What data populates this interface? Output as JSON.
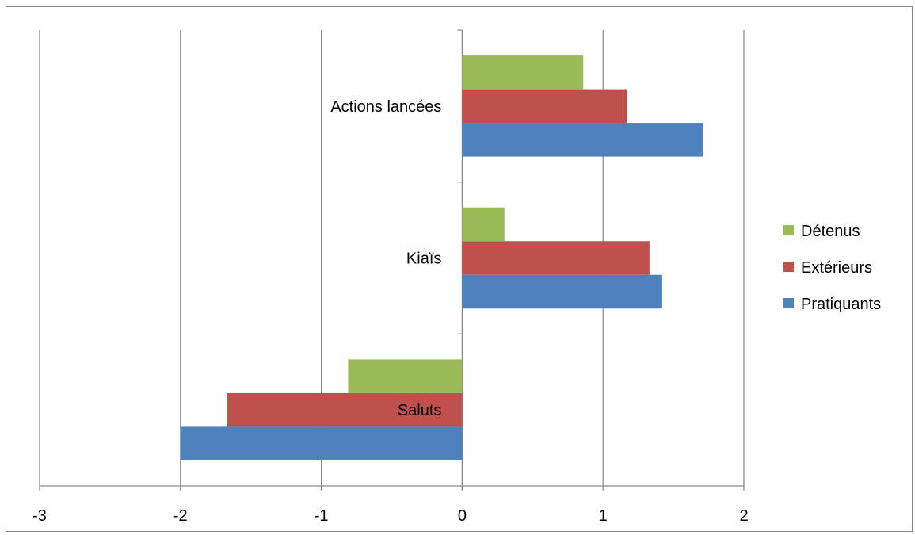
{
  "chart_data": {
    "type": "bar",
    "orientation": "horizontal",
    "categories": [
      "Saluts",
      "Kiaïs",
      "Actions lancées"
    ],
    "series": [
      {
        "name": "Pratiquants",
        "color": "#4F81BD",
        "values": [
          -2.0,
          1.42,
          1.71
        ]
      },
      {
        "name": "Extérieurs",
        "color": "#C0504D",
        "values": [
          -1.67,
          1.33,
          1.17
        ]
      },
      {
        "name": "Détenus",
        "color": "#9BBB59",
        "values": [
          -0.81,
          0.3,
          0.86
        ]
      }
    ],
    "xlim": [
      -3,
      2
    ],
    "xticks": [
      "-3",
      "-2",
      "-1",
      "0",
      "1",
      "2"
    ],
    "grid": "vertical",
    "legend_position": "right",
    "legend_order": [
      "Détenus",
      "Extérieurs",
      "Pratiquants"
    ],
    "title": "",
    "xlabel": "",
    "ylabel": ""
  }
}
